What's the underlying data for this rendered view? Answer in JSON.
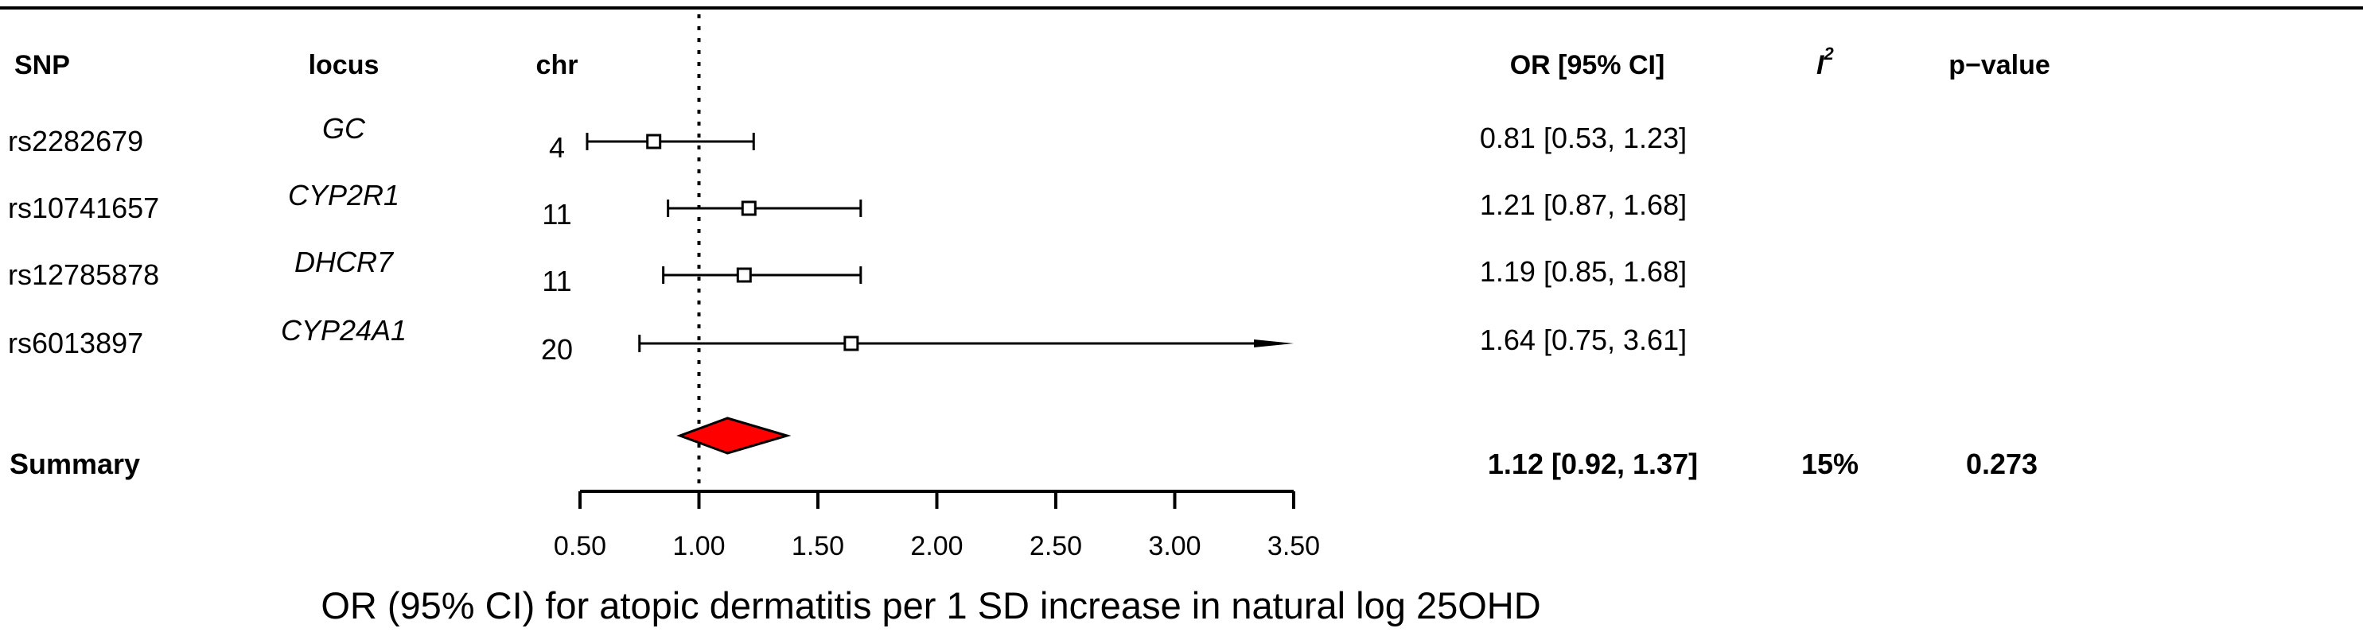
{
  "chart_data": {
    "type": "forest",
    "xlabel": "OR (95% CI) for atopic dermatitis per 1 SD increase in natural log 25OHD",
    "xlim": [
      0.5,
      3.5
    ],
    "xticks": [
      "0.50",
      "1.00",
      "1.50",
      "2.00",
      "2.50",
      "3.00",
      "3.50"
    ],
    "reference_line": 1.0,
    "columns": {
      "snp": "SNP",
      "locus": "locus",
      "chr": "chr",
      "or": "OR [95% CI]",
      "i2": "I",
      "i2_sup": "2",
      "p": "p−value"
    },
    "rows": [
      {
        "snp": "rs2282679",
        "locus": "GC",
        "chr": "4",
        "or": 0.81,
        "lo": 0.53,
        "hi": 1.23,
        "label": "0.81 [0.53, 1.23]"
      },
      {
        "snp": "rs10741657",
        "locus": "CYP2R1",
        "chr": "11",
        "or": 1.21,
        "lo": 0.87,
        "hi": 1.68,
        "label": "1.21 [0.87, 1.68]"
      },
      {
        "snp": "rs12785878",
        "locus": "DHCR7",
        "chr": "11",
        "or": 1.19,
        "lo": 0.85,
        "hi": 1.68,
        "label": "1.19 [0.85, 1.68]"
      },
      {
        "snp": "rs6013897",
        "locus": "CYP24A1",
        "chr": "20",
        "or": 1.64,
        "lo": 0.75,
        "hi": 3.61,
        "label": "1.64 [0.75, 3.61]"
      }
    ],
    "summary": {
      "label": "Summary",
      "or": 1.12,
      "lo": 0.92,
      "hi": 1.37,
      "or_label": "1.12 [0.92, 1.37]",
      "i2": "15%",
      "p": "0.273",
      "color": "#ff0000"
    }
  }
}
